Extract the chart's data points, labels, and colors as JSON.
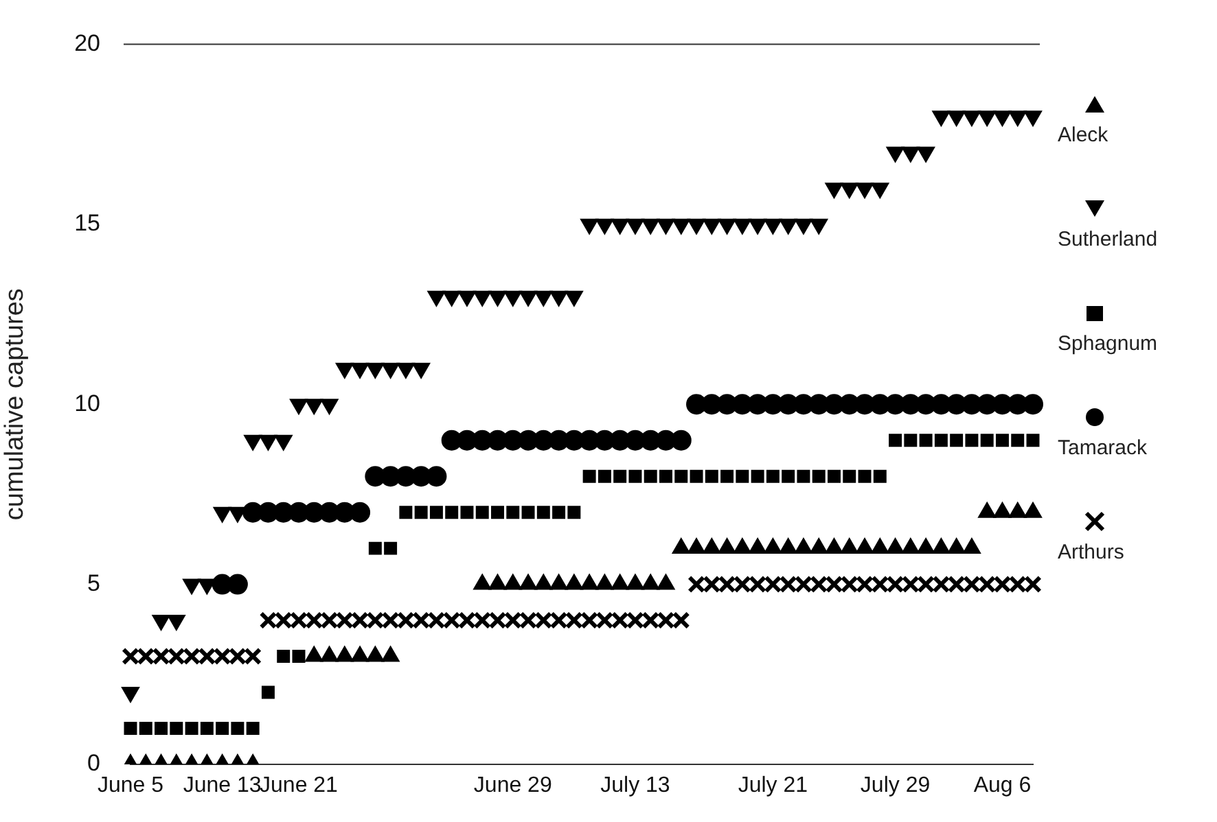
{
  "chart_data": {
    "type": "scatter",
    "ylabel": "cumulative captures",
    "categories": [
      "June 5",
      null,
      null,
      null,
      null,
      null,
      "June 13",
      null,
      null,
      null,
      null,
      "June 21",
      null,
      null,
      null,
      null,
      null,
      null,
      null,
      null,
      null,
      null,
      null,
      null,
      null,
      "June 29",
      null,
      null,
      null,
      null,
      null,
      null,
      null,
      "July 13",
      null,
      null,
      null,
      null,
      null,
      null,
      null,
      null,
      "July 21",
      null,
      null,
      null,
      null,
      null,
      null,
      null,
      "July 29",
      null,
      null,
      null,
      null,
      null,
      null,
      "Aug 6",
      null,
      null
    ],
    "ylim": [
      0,
      20
    ],
    "yticks": [
      0,
      5,
      10,
      15,
      20
    ],
    "grid": false,
    "legend": "right",
    "series": [
      {
        "name": "Aleck",
        "color": "#000000",
        "marker": "triangle",
        "values": [
          0,
          0,
          0,
          0,
          0,
          0,
          0,
          0,
          0,
          null,
          null,
          null,
          3,
          3,
          3,
          3,
          3,
          3,
          null,
          null,
          null,
          null,
          null,
          5,
          5,
          5,
          5,
          5,
          5,
          5,
          5,
          5,
          5,
          5,
          5,
          5,
          6,
          6,
          6,
          6,
          6,
          6,
          6,
          6,
          6,
          6,
          6,
          6,
          6,
          6,
          6,
          6,
          6,
          6,
          6,
          6,
          7,
          7,
          7,
          7
        ]
      },
      {
        "name": "Sutherland",
        "color": "#000000",
        "marker": "triangle-down",
        "values": [
          2,
          null,
          4,
          4,
          5,
          5,
          7,
          7,
          9,
          9,
          9,
          10,
          10,
          10,
          11,
          11,
          11,
          11,
          11,
          11,
          13,
          13,
          13,
          13,
          13,
          13,
          13,
          13,
          13,
          13,
          15,
          15,
          15,
          15,
          15,
          15,
          15,
          15,
          15,
          15,
          15,
          15,
          15,
          15,
          15,
          15,
          16,
          16,
          16,
          16,
          17,
          17,
          17,
          18,
          18,
          18,
          18,
          18,
          18,
          18
        ]
      },
      {
        "name": "Sphagnum",
        "color": "#000000",
        "marker": "square",
        "values": [
          1,
          1,
          1,
          1,
          1,
          1,
          1,
          1,
          1,
          2,
          3,
          3,
          null,
          null,
          null,
          null,
          6,
          6,
          7,
          7,
          7,
          7,
          7,
          7,
          7,
          7,
          7,
          7,
          7,
          7,
          8,
          8,
          8,
          8,
          8,
          8,
          8,
          8,
          8,
          8,
          8,
          8,
          8,
          8,
          8,
          8,
          8,
          8,
          8,
          8,
          9,
          9,
          9,
          9,
          9,
          9,
          9,
          9,
          9,
          9
        ]
      },
      {
        "name": "Tamarack",
        "color": "#000000",
        "marker": "circle",
        "values": [
          null,
          null,
          null,
          null,
          null,
          null,
          5,
          5,
          7,
          7,
          7,
          7,
          7,
          7,
          7,
          7,
          8,
          8,
          8,
          8,
          8,
          9,
          9,
          9,
          9,
          9,
          9,
          9,
          9,
          9,
          9,
          9,
          9,
          9,
          9,
          9,
          9,
          10,
          10,
          10,
          10,
          10,
          10,
          10,
          10,
          10,
          10,
          10,
          10,
          10,
          10,
          10,
          10,
          10,
          10,
          10,
          10,
          10,
          10,
          10
        ]
      },
      {
        "name": "Arthurs",
        "color": "#000000",
        "marker": "cross",
        "values": [
          3,
          3,
          3,
          3,
          3,
          3,
          3,
          3,
          3,
          4,
          4,
          4,
          4,
          4,
          4,
          4,
          4,
          4,
          4,
          4,
          4,
          4,
          4,
          4,
          4,
          4,
          4,
          4,
          4,
          4,
          4,
          4,
          4,
          4,
          4,
          4,
          4,
          5,
          5,
          5,
          5,
          5,
          5,
          5,
          5,
          5,
          5,
          5,
          5,
          5,
          5,
          5,
          5,
          5,
          5,
          5,
          5,
          5,
          5,
          5
        ]
      }
    ]
  }
}
